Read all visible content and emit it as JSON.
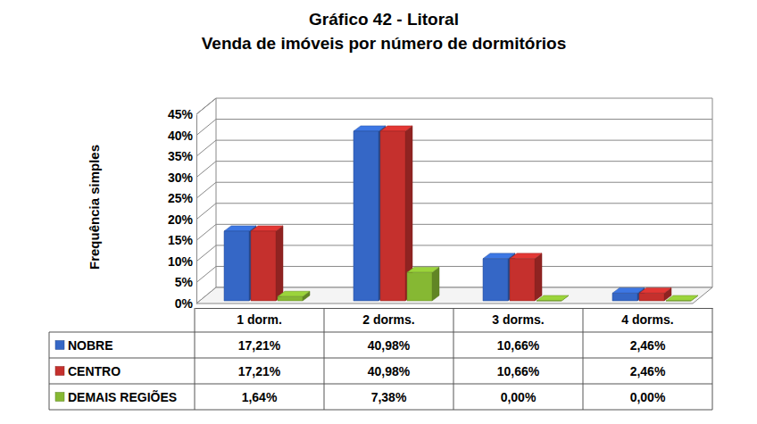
{
  "chart_data": {
    "type": "bar",
    "title": "Gráfico 42 - Litoral",
    "subtitle": "Venda de imóveis por número de dormitórios",
    "y_label": "Frequência simples",
    "categories": [
      "1 dorm.",
      "2 dorms.",
      "3 dorms.",
      "4 dorms."
    ],
    "series": [
      {
        "name": "NOBRE",
        "color": "#3567c6",
        "values": [
          17.21,
          40.98,
          10.66,
          2.46
        ],
        "value_labels": [
          "17,21%",
          "40,98%",
          "10,66%",
          "2,46%"
        ]
      },
      {
        "name": "CENTRO",
        "color": "#c5302d",
        "values": [
          17.21,
          40.98,
          10.66,
          2.46
        ],
        "value_labels": [
          "17,21%",
          "40,98%",
          "10,66%",
          "2,46%"
        ]
      },
      {
        "name": "DEMAIS REGIÕES",
        "color": "#86b833",
        "values": [
          1.64,
          7.38,
          0.0,
          0.0
        ],
        "value_labels": [
          "1,64%",
          "7,38%",
          "0,00%",
          "0,00%"
        ]
      }
    ],
    "ylim": [
      0,
      45
    ],
    "yticks": [
      {
        "value": 0,
        "label": "0%"
      },
      {
        "value": 5,
        "label": "5%"
      },
      {
        "value": 10,
        "label": "10%"
      },
      {
        "value": 15,
        "label": "15%"
      },
      {
        "value": 20,
        "label": "20%"
      },
      {
        "value": 25,
        "label": "25%"
      },
      {
        "value": 30,
        "label": "30%"
      },
      {
        "value": 35,
        "label": "35%"
      },
      {
        "value": 40,
        "label": "40%"
      },
      {
        "value": 45,
        "label": "45%"
      }
    ],
    "grid": true,
    "legend": "bottom"
  }
}
